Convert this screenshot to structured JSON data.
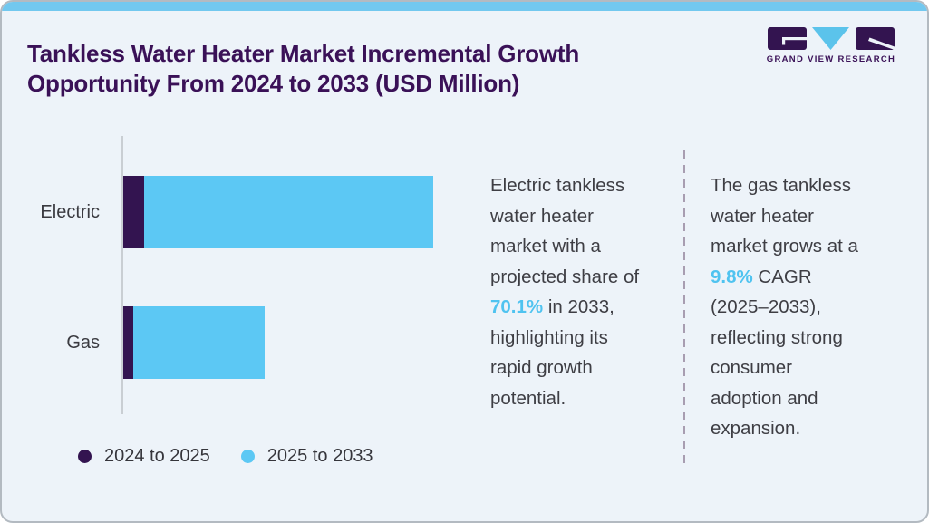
{
  "header": {
    "title": "Tankless Water Heater Market Incremental Growth Opportunity From 2024 to 2033 (USD Million)"
  },
  "logo": {
    "brand": "Grand View Research",
    "wordmark": "GRAND VIEW RESEARCH"
  },
  "chart_data": {
    "type": "bar",
    "orientation": "horizontal",
    "stacked": true,
    "title": "Tankless Water Heater Market Incremental Growth Opportunity From 2024 to 2033 (USD Million)",
    "categories": [
      "Electric",
      "Gas"
    ],
    "series": [
      {
        "name": "2024 to 2025",
        "color": "#331450",
        "values_relative_pct": [
          6.7,
          3.2
        ]
      },
      {
        "name": "2025 to 2033",
        "color": "#5CC8F4",
        "values_relative_pct": [
          93.3,
          42.4
        ]
      }
    ],
    "value_axis": {
      "labels_shown": false,
      "note": "No numeric axis shown; segment widths estimated from pixels as percent of the longest stacked bar (Electric total = 100%)"
    },
    "legend_position": "bottom"
  },
  "callouts": [
    {
      "before": "Electric tankless water heater market with a projected share of ",
      "highlight": "70.1%",
      "after": " in 2033, highlighting its rapid growth potential."
    },
    {
      "before": "The gas tankless water heater market grows at a ",
      "highlight": "9.8%",
      "after": " CAGR (2025–2033), reflecting strong consumer adoption and expansion."
    }
  ],
  "colors": {
    "accent_purple": "#331450",
    "accent_blue": "#5CC8F4",
    "highlight_blue": "#4FC3F0",
    "title_purple": "#3A1157",
    "top_strip": "#72C8EF",
    "card_background": "#EDF3F9"
  }
}
